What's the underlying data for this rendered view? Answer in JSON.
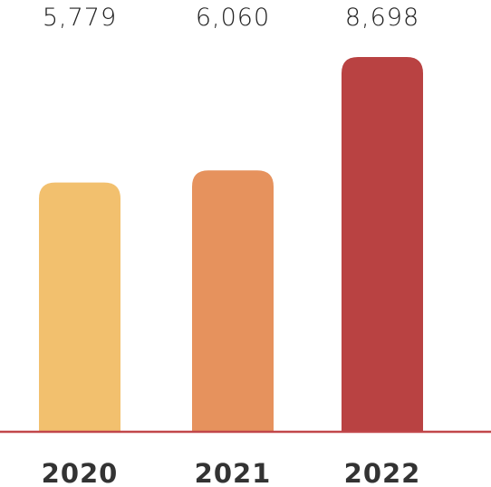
{
  "chart_data": {
    "type": "bar",
    "categories": [
      "2020",
      "2021",
      "2022"
    ],
    "values": [
      5779,
      6060,
      8698
    ],
    "value_labels": [
      "5,779",
      "6,060",
      "8,698"
    ],
    "colors": [
      "#f2c06e",
      "#e6925d",
      "#b94242"
    ]
  }
}
